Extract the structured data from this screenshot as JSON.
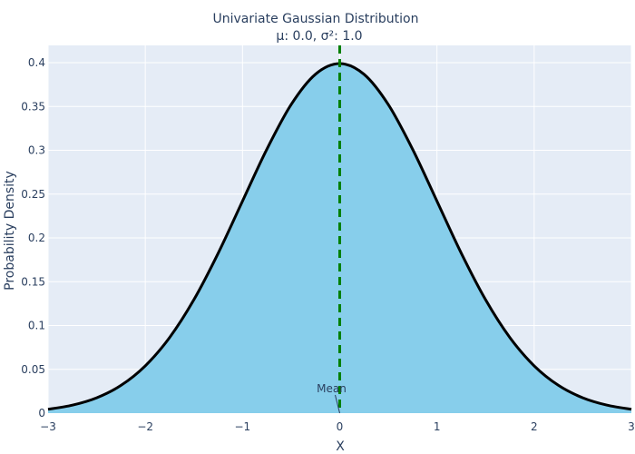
{
  "chart_data": {
    "type": "area",
    "title": "Univariate Gaussian Distribution",
    "subtitle": "μ: 0.0, σ²: 1.0",
    "xlabel": "X",
    "ylabel": "Probability Density",
    "xlim": [
      -3,
      3
    ],
    "ylim": [
      0,
      0.42
    ],
    "grid": true,
    "mean": 0.0,
    "variance": 1.0,
    "x_ticks": [
      -3,
      -2,
      -1,
      0,
      1,
      2,
      3
    ],
    "x_tick_labels": [
      "−3",
      "−2",
      "−1",
      "0",
      "1",
      "2",
      "3"
    ],
    "y_ticks": [
      0,
      0.05,
      0.1,
      0.15,
      0.2,
      0.25,
      0.3,
      0.35,
      0.4
    ],
    "y_tick_labels": [
      "0",
      "0.05",
      "0.1",
      "0.15",
      "0.2",
      "0.25",
      "0.3",
      "0.35",
      "0.4"
    ],
    "series": [
      {
        "x": [
          -3.0,
          -2.75,
          -2.5,
          -2.25,
          -2.0,
          -1.75,
          -1.5,
          -1.25,
          -1.0,
          -0.75,
          -0.5,
          -0.25,
          0.0,
          0.25,
          0.5,
          0.75,
          1.0,
          1.25,
          1.5,
          1.75,
          2.0,
          2.25,
          2.5,
          2.75,
          3.0
        ],
        "y": [
          0.0044,
          0.0091,
          0.0175,
          0.0317,
          0.054,
          0.0863,
          0.1295,
          0.1826,
          0.242,
          0.3011,
          0.3521,
          0.3867,
          0.3989,
          0.3867,
          0.3521,
          0.3011,
          0.242,
          0.1826,
          0.1295,
          0.0863,
          0.054,
          0.0317,
          0.0175,
          0.0091,
          0.0044
        ],
        "fill_color": "#87ceeb",
        "line_color": "#000000"
      }
    ],
    "mean_line": {
      "x": 0.0,
      "color": "#008000"
    },
    "annotations": [
      {
        "text": "Mean",
        "x": 0.0,
        "y": 0.0
      }
    ],
    "colors": {
      "plot_bg": "#e5ecf6",
      "grid": "#ffffff",
      "text": "#2a3f5f"
    }
  }
}
